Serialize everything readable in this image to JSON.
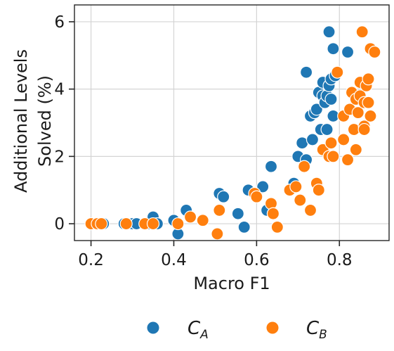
{
  "chart_data": {
    "type": "scatter",
    "xlabel": "Macro F1",
    "ylabel_lines": [
      "Additional Levels",
      "Solved (%)"
    ],
    "xlim": [
      0.16,
      0.92
    ],
    "ylim": [
      -0.5,
      6.5
    ],
    "xticks": [
      0.2,
      0.4,
      0.6,
      0.8
    ],
    "yticks": [
      0,
      2,
      4,
      6
    ],
    "xtick_labels": [
      "0.2",
      "0.4",
      "0.6",
      "0.8"
    ],
    "ytick_labels": [
      "0",
      "2",
      "4",
      "6"
    ],
    "grid": true,
    "legend_position": "bottom-center, below axes",
    "series": [
      {
        "name": "C",
        "subscript": "A",
        "color": "#1f77b4",
        "points": [
          [
            0.2,
            0
          ],
          [
            0.21,
            0
          ],
          [
            0.23,
            0
          ],
          [
            0.28,
            0
          ],
          [
            0.3,
            0
          ],
          [
            0.31,
            0
          ],
          [
            0.34,
            0
          ],
          [
            0.35,
            0.2
          ],
          [
            0.36,
            0
          ],
          [
            0.4,
            0.1
          ],
          [
            0.41,
            -0.3
          ],
          [
            0.43,
            0.4
          ],
          [
            0.51,
            0.9
          ],
          [
            0.52,
            0.8
          ],
          [
            0.555,
            0.3
          ],
          [
            0.57,
            -0.1
          ],
          [
            0.58,
            1.0
          ],
          [
            0.6,
            0.9
          ],
          [
            0.615,
            1.1
          ],
          [
            0.625,
            0.4
          ],
          [
            0.635,
            1.7
          ],
          [
            0.64,
            0.3
          ],
          [
            0.68,
            1.0
          ],
          [
            0.69,
            1.2
          ],
          [
            0.7,
            2.0
          ],
          [
            0.71,
            2.4
          ],
          [
            0.72,
            1.9
          ],
          [
            0.72,
            4.5
          ],
          [
            0.73,
            3.2
          ],
          [
            0.735,
            2.5
          ],
          [
            0.74,
            3.3
          ],
          [
            0.745,
            3.4
          ],
          [
            0.75,
            3.9
          ],
          [
            0.755,
            2.8
          ],
          [
            0.76,
            3.8
          ],
          [
            0.76,
            4.2
          ],
          [
            0.765,
            3.6
          ],
          [
            0.77,
            2.8
          ],
          [
            0.77,
            3.8
          ],
          [
            0.775,
            4.1
          ],
          [
            0.78,
            3.7
          ],
          [
            0.78,
            4.3
          ],
          [
            0.775,
            5.7
          ],
          [
            0.785,
            5.2
          ],
          [
            0.785,
            3.2
          ],
          [
            0.79,
            4.4
          ],
          [
            0.82,
            5.1
          ]
        ]
      },
      {
        "name": "C",
        "subscript": "B",
        "color": "#ff7f0e",
        "points": [
          [
            0.2,
            0
          ],
          [
            0.215,
            0
          ],
          [
            0.225,
            0
          ],
          [
            0.285,
            0
          ],
          [
            0.33,
            0
          ],
          [
            0.35,
            0
          ],
          [
            0.41,
            0
          ],
          [
            0.44,
            0.2
          ],
          [
            0.47,
            0.1
          ],
          [
            0.505,
            -0.3
          ],
          [
            0.51,
            0.4
          ],
          [
            0.595,
            0.9
          ],
          [
            0.6,
            0.8
          ],
          [
            0.635,
            0.6
          ],
          [
            0.64,
            0.3
          ],
          [
            0.65,
            -0.1
          ],
          [
            0.68,
            1.0
          ],
          [
            0.695,
            1.1
          ],
          [
            0.705,
            0.7
          ],
          [
            0.715,
            1.7
          ],
          [
            0.73,
            0.4
          ],
          [
            0.745,
            1.2
          ],
          [
            0.75,
            1.0
          ],
          [
            0.76,
            2.2
          ],
          [
            0.775,
            2.0
          ],
          [
            0.78,
            2.4
          ],
          [
            0.785,
            2.0
          ],
          [
            0.795,
            4.5
          ],
          [
            0.81,
            2.5
          ],
          [
            0.81,
            3.2
          ],
          [
            0.82,
            1.9
          ],
          [
            0.825,
            3.4
          ],
          [
            0.83,
            3.9
          ],
          [
            0.835,
            2.8
          ],
          [
            0.84,
            2.2
          ],
          [
            0.84,
            3.7
          ],
          [
            0.845,
            3.3
          ],
          [
            0.85,
            4.2
          ],
          [
            0.85,
            3.8
          ],
          [
            0.855,
            5.7
          ],
          [
            0.86,
            3.6
          ],
          [
            0.86,
            2.9
          ],
          [
            0.86,
            2.8
          ],
          [
            0.865,
            4.1
          ],
          [
            0.87,
            4.3
          ],
          [
            0.87,
            3.6
          ],
          [
            0.875,
            3.2
          ],
          [
            0.875,
            5.2
          ],
          [
            0.885,
            5.1
          ]
        ]
      }
    ]
  }
}
